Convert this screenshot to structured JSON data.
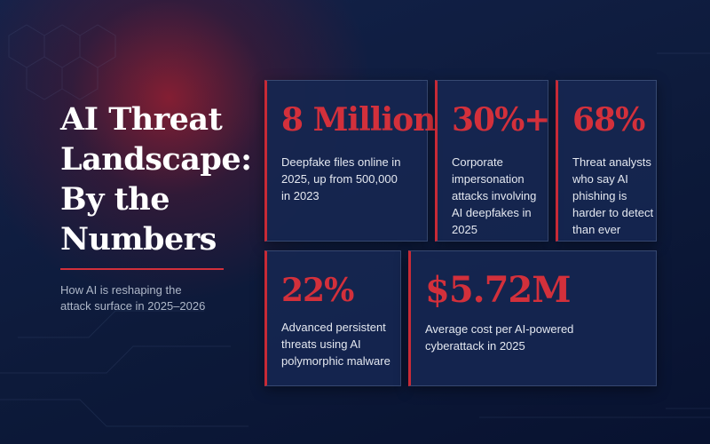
{
  "header": {
    "title_lines": [
      "AI Threat",
      "Landscape:",
      "By the",
      "Numbers"
    ],
    "subtitle": "How AI is reshaping the attack surface in 2025–2026"
  },
  "stats": [
    {
      "value": "8 Million",
      "description": "Deepfake files online in 2025, up from 500,000 in 2023"
    },
    {
      "value": "30%+",
      "description": "Corporate impersonation attacks involving AI deepfakes in 2025"
    },
    {
      "value": "68%",
      "description": "Threat analysts who say AI phishing is harder to detect than ever"
    },
    {
      "value": "22%",
      "description": "Advanced persistent threats using AI polymorphic malware"
    },
    {
      "value": "$5.72M",
      "description": "Average cost per AI-powered cyberattack in 2025"
    }
  ]
}
